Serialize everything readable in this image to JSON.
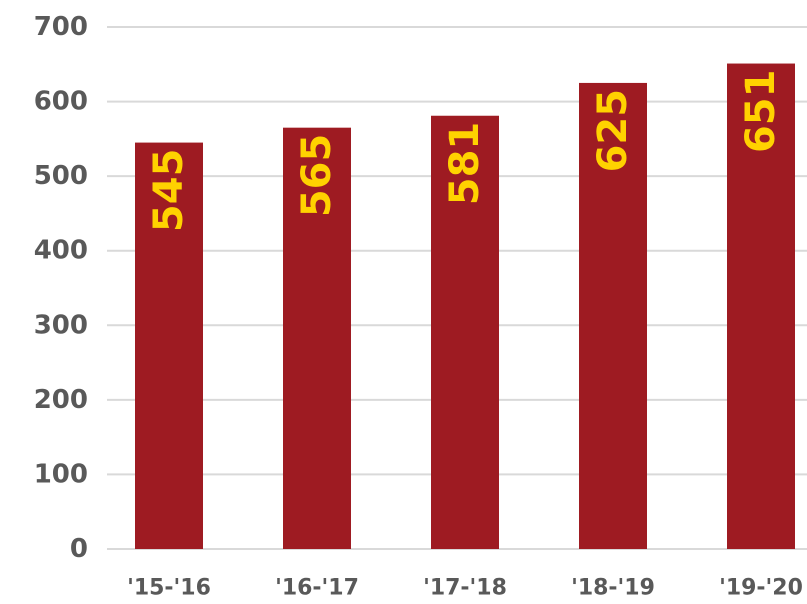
{
  "chart_data": {
    "type": "bar",
    "categories": [
      "'15-'16",
      "'16-'17",
      "'17-'18",
      "'18-'19",
      "'19-'20"
    ],
    "values": [
      545,
      565,
      581,
      625,
      651
    ],
    "color": "#9e1b22",
    "label_color": "#ffd200",
    "ylim": [
      0,
      700
    ],
    "yticks": [
      0,
      100,
      200,
      300,
      400,
      500,
      600,
      700
    ],
    "grid": true
  }
}
